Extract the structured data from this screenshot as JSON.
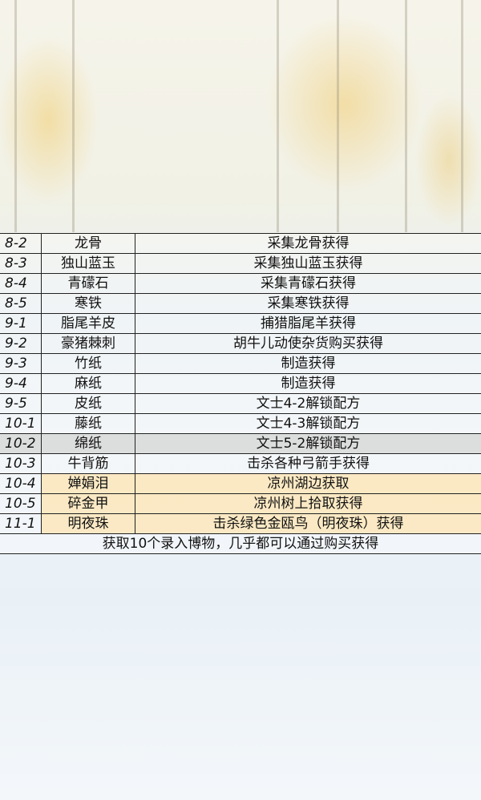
{
  "rows": [
    {
      "id": "8-2",
      "name": "龙骨",
      "source": "采集龙骨获得",
      "highlight": "none"
    },
    {
      "id": "8-3",
      "name": "独山蓝玉",
      "source": "采集独山蓝玉获得",
      "highlight": "none"
    },
    {
      "id": "8-4",
      "name": "青礞石",
      "source": "采集青礞石获得",
      "highlight": "none"
    },
    {
      "id": "8-5",
      "name": "寒铁",
      "source": "采集寒铁获得",
      "highlight": "none"
    },
    {
      "id": "9-1",
      "name": "脂尾羊皮",
      "source": "捕猎脂尾羊获得",
      "highlight": "none"
    },
    {
      "id": "9-2",
      "name": "豪猪棘刺",
      "source": "胡牛儿动使杂货购买获得",
      "highlight": "none"
    },
    {
      "id": "9-3",
      "name": "竹纸",
      "source": "制造获得",
      "highlight": "none"
    },
    {
      "id": "9-4",
      "name": "麻纸",
      "source": "制造获得",
      "highlight": "none"
    },
    {
      "id": "9-5",
      "name": "皮纸",
      "source": "文士4-2解锁配方",
      "highlight": "none"
    },
    {
      "id": "10-1",
      "name": "藤纸",
      "source": "文士4-3解锁配方",
      "highlight": "none"
    },
    {
      "id": "10-2",
      "name": "绵纸",
      "source": "文士5-2解锁配方",
      "highlight": "gray"
    },
    {
      "id": "10-3",
      "name": "牛背筋",
      "source": "击杀各种弓箭手获得",
      "highlight": "none"
    },
    {
      "id": "10-4",
      "name": "婵娟泪",
      "source": "凉州湖边获取",
      "highlight": "yellow"
    },
    {
      "id": "10-5",
      "name": "碎金甲",
      "source": "凉州树上拾取获得",
      "highlight": "yellow"
    },
    {
      "id": "11-1",
      "name": "明夜珠",
      "source": "击杀绿色金瓯鸟（明夜珠）获得",
      "highlight": "yellow"
    }
  ],
  "footer": "获取10个录入博物，几乎都可以通过购买获得",
  "colors": {
    "gray_row": "#d7d7d7",
    "yellow_row": "#fce8be",
    "border": "#222222"
  }
}
